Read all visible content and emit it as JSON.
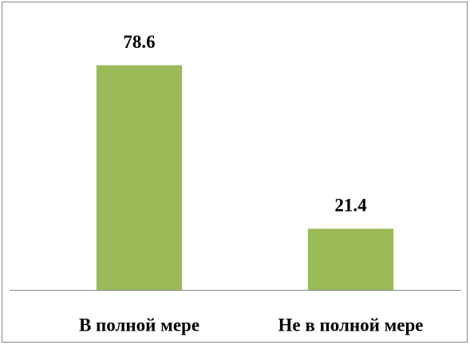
{
  "chart_data": {
    "type": "bar",
    "categories": [
      "В полной мере",
      "Не в полной мере"
    ],
    "values": [
      78.6,
      21.4
    ],
    "color": "#9bbb59",
    "ylim": [
      0,
      90
    ]
  }
}
